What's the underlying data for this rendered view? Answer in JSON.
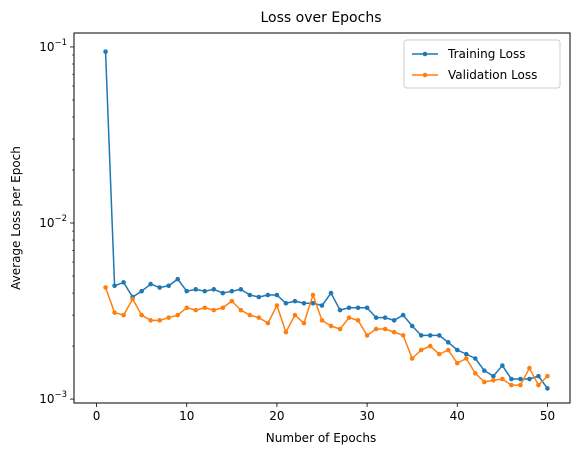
{
  "chart_data": {
    "type": "line",
    "title": "Loss over Epochs",
    "xlabel": "Number of Epochs",
    "ylabel": "Average Loss per Epoch",
    "yscale": "log",
    "xlim": [
      -2.5,
      52.5
    ],
    "ylim": [
      0.00095,
      0.12
    ],
    "xticks": [
      0,
      10,
      20,
      30,
      40,
      50
    ],
    "yticks": [
      {
        "value": 0.1,
        "base": "10",
        "exp": "−1"
      },
      {
        "value": 0.01,
        "base": "10",
        "exp": "−2"
      },
      {
        "value": 0.001,
        "base": "10",
        "exp": "−3"
      }
    ],
    "grid": false,
    "legend_position": "top-right",
    "x": [
      1,
      2,
      3,
      4,
      5,
      6,
      7,
      8,
      9,
      10,
      11,
      12,
      13,
      14,
      15,
      16,
      17,
      18,
      19,
      20,
      21,
      22,
      23,
      24,
      25,
      26,
      27,
      28,
      29,
      30,
      31,
      32,
      33,
      34,
      35,
      36,
      37,
      38,
      39,
      40,
      41,
      42,
      43,
      44,
      45,
      46,
      47,
      48,
      49,
      50
    ],
    "series": [
      {
        "name": "Training Loss",
        "color": "#1f77b4",
        "values": [
          0.094,
          0.0044,
          0.0046,
          0.0038,
          0.0041,
          0.0045,
          0.0043,
          0.0044,
          0.0048,
          0.0041,
          0.0042,
          0.0041,
          0.0042,
          0.004,
          0.0041,
          0.0042,
          0.0039,
          0.0038,
          0.0039,
          0.0039,
          0.0035,
          0.0036,
          0.0035,
          0.0035,
          0.0034,
          0.004,
          0.0032,
          0.0033,
          0.0033,
          0.0033,
          0.0029,
          0.0029,
          0.0028,
          0.003,
          0.0026,
          0.0023,
          0.0023,
          0.0023,
          0.0021,
          0.0019,
          0.0018,
          0.0017,
          0.00145,
          0.00135,
          0.00155,
          0.0013,
          0.0013,
          0.0013,
          0.00135,
          0.00115
        ]
      },
      {
        "name": "Validation Loss",
        "color": "#ff7f0e",
        "values": [
          0.0043,
          0.0031,
          0.003,
          0.0037,
          0.003,
          0.0028,
          0.0028,
          0.0029,
          0.003,
          0.0033,
          0.0032,
          0.0033,
          0.0032,
          0.0033,
          0.0036,
          0.0032,
          0.003,
          0.0029,
          0.0027,
          0.0034,
          0.0024,
          0.003,
          0.0027,
          0.0039,
          0.0028,
          0.0026,
          0.0025,
          0.0029,
          0.0028,
          0.0023,
          0.0025,
          0.0025,
          0.0024,
          0.0023,
          0.0017,
          0.0019,
          0.002,
          0.0018,
          0.0019,
          0.0016,
          0.0017,
          0.0014,
          0.00125,
          0.00128,
          0.0013,
          0.0012,
          0.0012,
          0.0015,
          0.0012,
          0.00135
        ]
      }
    ]
  }
}
